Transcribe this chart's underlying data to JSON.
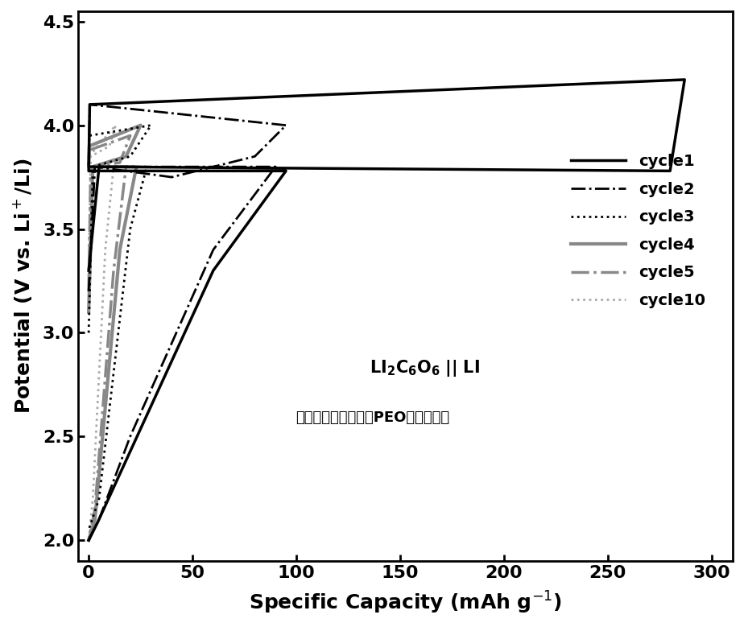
{
  "title": "",
  "xlabel": "Specific Capacity (mAh g⁻¹)",
  "ylabel": "Potential (V vs. Li⁺/Li)",
  "xlim": [
    -5,
    310
  ],
  "ylim": [
    1.9,
    4.55
  ],
  "xticks": [
    0,
    50,
    100,
    150,
    200,
    250,
    300
  ],
  "yticks": [
    2.0,
    2.5,
    3.0,
    3.5,
    4.0,
    4.5
  ],
  "annotation1": "LI₂C₆O₆ ‖ LI",
  "annotation2": "（冷冻干燥法、使用PEO基电解质）",
  "legend_labels": [
    "cycle1",
    "cycle2",
    "cycle3",
    "cycle4",
    "cycle5",
    "cycle10"
  ],
  "background_color": "#ffffff",
  "curve_colors": [
    "#000000",
    "#000000",
    "#000000",
    "#888888",
    "#888888",
    "#aaaaaa"
  ],
  "curve_lw": [
    2.5,
    2.0,
    2.0,
    2.5,
    2.0,
    1.5
  ],
  "curve_ls": [
    "-",
    "-.",
    ":",
    "-",
    "-.",
    ":"
  ]
}
